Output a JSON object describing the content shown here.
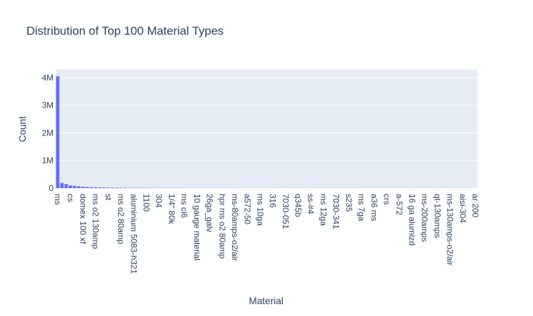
{
  "chart_data": {
    "type": "bar",
    "title": "Distribution of Top 100 Material Types",
    "xlabel": "Material",
    "ylabel": "Count",
    "ylim": [
      0,
      4300000
    ],
    "yticks": [
      {
        "value": 0,
        "label": "0"
      },
      {
        "value": 1000000,
        "label": "1M"
      },
      {
        "value": 2000000,
        "label": "2M"
      },
      {
        "value": 3000000,
        "label": "3M"
      },
      {
        "value": 4000000,
        "label": "4M"
      }
    ],
    "tick_labels": [
      {
        "index": 0,
        "label": "ms"
      },
      {
        "index": 3,
        "label": "cs"
      },
      {
        "index": 6,
        "label": "domex 100 xf"
      },
      {
        "index": 9,
        "label": "ms o2 130amp"
      },
      {
        "index": 12,
        "label": "st"
      },
      {
        "index": 15,
        "label": "ms o2 80amp"
      },
      {
        "index": 18,
        "label": "aluminium 5083-h321"
      },
      {
        "index": 21,
        "label": "1100"
      },
      {
        "index": 24,
        "label": "304"
      },
      {
        "index": 27,
        "label": "1/4\" 80k"
      },
      {
        "index": 30,
        "label": "ms ci6"
      },
      {
        "index": 33,
        "label": "10 gauge material"
      },
      {
        "index": 36,
        "label": "26ga_galv"
      },
      {
        "index": 39,
        "label": "hpr ms o2 80amp"
      },
      {
        "index": 42,
        "label": "ms-80amps-o2/air"
      },
      {
        "index": 45,
        "label": "a572-50"
      },
      {
        "index": 48,
        "label": "ms 10ga"
      },
      {
        "index": 51,
        "label": "316"
      },
      {
        "index": 54,
        "label": "7030-051"
      },
      {
        "index": 57,
        "label": "q345b"
      },
      {
        "index": 60,
        "label": "ss-#4"
      },
      {
        "index": 63,
        "label": "ms 12ga"
      },
      {
        "index": 66,
        "label": "7030-341"
      },
      {
        "index": 69,
        "label": "s235"
      },
      {
        "index": 72,
        "label": "ms 7ga"
      },
      {
        "index": 75,
        "label": "a36 ms"
      },
      {
        "index": 78,
        "label": "crs"
      },
      {
        "index": 81,
        "label": "a-572"
      },
      {
        "index": 84,
        "label": "16 ga alumizd"
      },
      {
        "index": 87,
        "label": "ms-200amps"
      },
      {
        "index": 90,
        "label": "qt-130amps"
      },
      {
        "index": 93,
        "label": "ms-130amps-o2/air"
      },
      {
        "index": 96,
        "label": "aisi-304"
      },
      {
        "index": 99,
        "label": "ar 200"
      }
    ],
    "values": [
      4050000,
      190000,
      150000,
      100000,
      85000,
      70000,
      55000,
      45000,
      38000,
      32000,
      28000,
      25000,
      22000,
      20000,
      18000,
      16500,
      15000,
      14000,
      13000,
      12000,
      11200,
      10500,
      9800,
      9200,
      8700,
      8200,
      7800,
      7400,
      7000,
      6700,
      6400,
      6100,
      5800,
      5600,
      5400,
      5200,
      5000,
      4800,
      4650,
      4500,
      4350,
      4200,
      4050,
      3900,
      3780,
      3660,
      3540,
      3430,
      3330,
      3230,
      3130,
      3040,
      2950,
      2870,
      2790,
      2710,
      2640,
      2570,
      2500,
      2440,
      2380,
      2320,
      2260,
      2210,
      2160,
      2110,
      2060,
      2010,
      1970,
      1930,
      1890,
      1850,
      1810,
      1770,
      1740,
      1700,
      1670,
      1640,
      1610,
      1580,
      1550,
      1520,
      1490,
      1460,
      1440,
      1410,
      1390,
      1360,
      1340,
      1320,
      1300,
      1280,
      1260,
      1240,
      1220,
      1200,
      1180,
      1160,
      1140,
      1120
    ],
    "bar_color": "#636efa",
    "plot_bgcolor": "#e5ecf6",
    "grid_color": "#ffffff",
    "text_color": "#2a3f5f",
    "grid": true
  }
}
